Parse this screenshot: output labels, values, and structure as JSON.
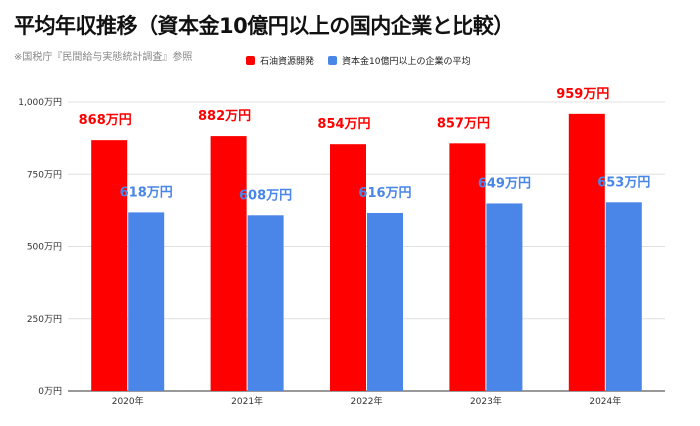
{
  "title": "平均年収推移（資本金10億円以上の国内企業と比較）",
  "source": "※国税庁『民間給与実態統計調査』参照",
  "colors": {
    "series1": "#ff0000",
    "series2": "#4a86e8",
    "grid": "#e0e0e0",
    "axis": "#333333"
  },
  "chart_data": {
    "type": "bar",
    "categories": [
      "2020年",
      "2021年",
      "2022年",
      "2023年",
      "2024年"
    ],
    "series": [
      {
        "name": "石油資源開発",
        "values": [
          868,
          882,
          854,
          857,
          959
        ],
        "data_labels": [
          "868万円",
          "882万円",
          "854万円",
          "857万円",
          "959万円"
        ],
        "color": "#ff0000"
      },
      {
        "name": "資本金10億円以上の企業の平均",
        "values": [
          618,
          608,
          616,
          649,
          653
        ],
        "data_labels": [
          "618万円",
          "608万円",
          "616万円",
          "649万円",
          "653万円"
        ],
        "color": "#4a86e8"
      }
    ],
    "y_ticks": [
      0,
      250,
      500,
      750,
      1000
    ],
    "y_tick_labels": [
      "0万円",
      "250万円",
      "500万円",
      "750万円",
      "1,000万円"
    ],
    "ylim": [
      0,
      1000
    ],
    "grid": true,
    "legend": "top-center"
  }
}
